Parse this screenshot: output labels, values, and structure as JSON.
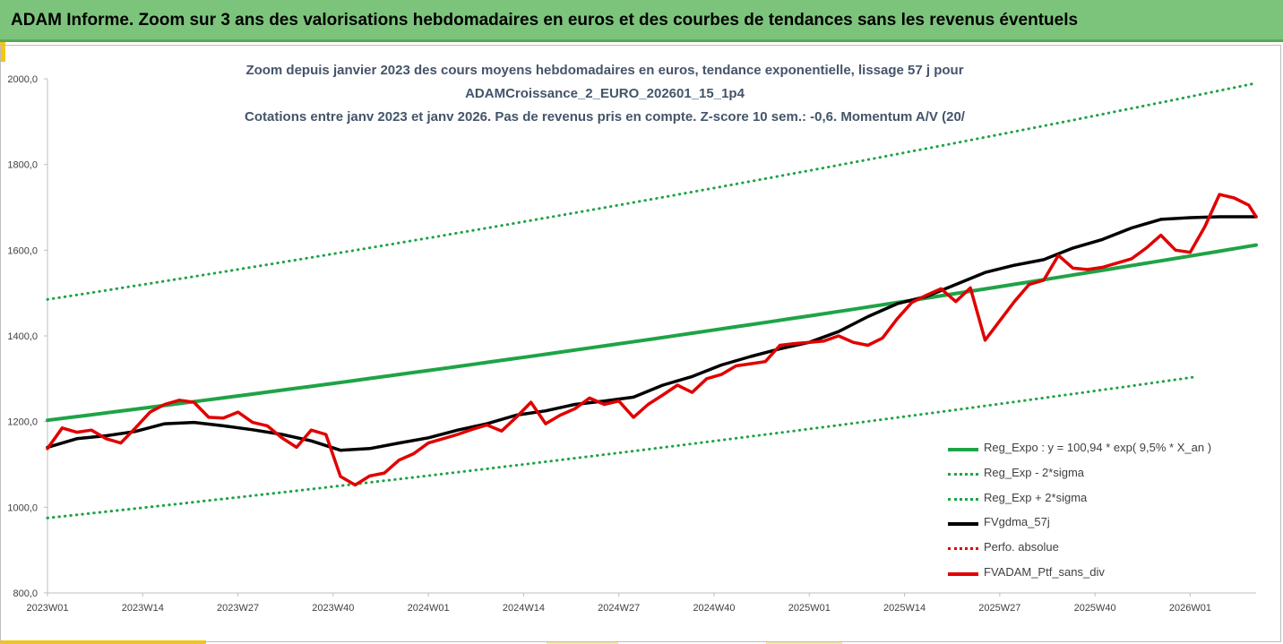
{
  "banner": {
    "title": "ADAM Informe. Zoom sur 3 ans des valorisations hebdomadaires en euros et des courbes de tendances sans les revenus éventuels"
  },
  "colors": {
    "banner_bg": "#7cc47c",
    "accent_yellow": "#f5c518",
    "title_text": "#44546a"
  },
  "chart_data": {
    "type": "line",
    "title_lines": [
      "Zoom depuis janvier 2023 des cours moyens hebdomadaires  en euros, tendance exponentielle, lissage 57 j pour",
      "ADAMCroissance_2_EURO_202601_15_1p4",
      "Cotations entre janv 2023 et janv 2026. Pas de revenus pris en compte. Z-score 10 sem.: -0,6. Momentum A/V (20/"
    ],
    "x_tick_labels": [
      "2023W01",
      "2023W14",
      "2023W27",
      "2023W40",
      "2024W01",
      "2024W14",
      "2024W27",
      "2024W40",
      "2025W01",
      "2025W14",
      "2025W27",
      "2025W40",
      "2026W01"
    ],
    "y_tick_labels": [
      "800,0",
      "1000,0",
      "1200,0",
      "1400,0",
      "1600,0",
      "1800,0",
      "2000,0"
    ],
    "ylim": [
      800,
      2000
    ],
    "x_range_weeks": [
      0,
      165
    ],
    "grid": false,
    "legend_position": "bottom-right",
    "series": [
      {
        "name": "Reg_Expo : y = 100,94 * exp( 9,5% *  X_an )",
        "color": "#1fa347",
        "style": "solid",
        "width": 4,
        "x": [
          0,
          165
        ],
        "values": [
          1203,
          1612
        ],
        "curve": "exp"
      },
      {
        "name": "Reg_Exp - 2*sigma",
        "color": "#1fa347",
        "style": "dotted",
        "width": 3,
        "x": [
          0,
          157
        ],
        "values": [
          975,
          1305
        ],
        "curve": "exp"
      },
      {
        "name": "Reg_Exp + 2*sigma",
        "color": "#1fa347",
        "style": "dotted",
        "width": 3,
        "x": [
          0,
          165
        ],
        "values": [
          1485,
          1990
        ],
        "curve": "exp"
      },
      {
        "name": "FVgdma_57j",
        "color": "#000000",
        "style": "solid",
        "width": 3.5,
        "x": [
          0,
          4,
          8,
          12,
          16,
          20,
          24,
          28,
          32,
          36,
          40,
          44,
          48,
          52,
          56,
          60,
          64,
          68,
          72,
          76,
          80,
          84,
          88,
          92,
          96,
          100,
          104,
          108,
          112,
          116,
          120,
          124,
          128,
          132,
          136,
          140,
          144,
          148,
          152,
          156,
          160,
          165
        ],
        "values": [
          1140,
          1160,
          1167,
          1177,
          1195,
          1198,
          1190,
          1181,
          1170,
          1155,
          1133,
          1137,
          1150,
          1162,
          1180,
          1195,
          1215,
          1225,
          1240,
          1248,
          1257,
          1285,
          1305,
          1332,
          1352,
          1370,
          1385,
          1410,
          1445,
          1475,
          1492,
          1520,
          1548,
          1565,
          1578,
          1605,
          1625,
          1652,
          1672,
          1676,
          1678,
          1678
        ]
      },
      {
        "name": "Perfo. absolue",
        "color": "#e00000",
        "style": "dotted",
        "width": 3,
        "x": [],
        "values": []
      },
      {
        "name": "FVADAM_Ptf_sans_div",
        "color": "#e00000",
        "style": "solid",
        "width": 3.5,
        "x": [
          0,
          2,
          4,
          6,
          8,
          10,
          12,
          14,
          16,
          18,
          20,
          22,
          24,
          26,
          28,
          30,
          32,
          34,
          36,
          38,
          40,
          42,
          44,
          46,
          48,
          50,
          52,
          54,
          56,
          58,
          60,
          62,
          64,
          66,
          68,
          70,
          72,
          74,
          76,
          78,
          80,
          82,
          84,
          86,
          88,
          90,
          92,
          94,
          96,
          98,
          100,
          102,
          104,
          106,
          108,
          110,
          112,
          114,
          116,
          118,
          120,
          122,
          124,
          126,
          128,
          130,
          132,
          134,
          136,
          138,
          140,
          142,
          144,
          146,
          148,
          150,
          152,
          154,
          156,
          158,
          160,
          162,
          164,
          165
        ],
        "values": [
          1137,
          1185,
          1175,
          1180,
          1160,
          1150,
          1185,
          1222,
          1240,
          1250,
          1245,
          1210,
          1208,
          1222,
          1198,
          1190,
          1162,
          1140,
          1180,
          1170,
          1072,
          1052,
          1073,
          1080,
          1110,
          1125,
          1150,
          1160,
          1170,
          1182,
          1192,
          1178,
          1210,
          1245,
          1195,
          1215,
          1230,
          1255,
          1240,
          1248,
          1210,
          1240,
          1262,
          1285,
          1268,
          1300,
          1310,
          1330,
          1335,
          1340,
          1378,
          1382,
          1385,
          1388,
          1400,
          1385,
          1378,
          1395,
          1440,
          1478,
          1495,
          1510,
          1480,
          1512,
          1390,
          1435,
          1480,
          1520,
          1530,
          1588,
          1558,
          1555,
          1560,
          1570,
          1580,
          1605,
          1635,
          1600,
          1595,
          1655,
          1730,
          1722,
          1705,
          1678
        ]
      }
    ]
  }
}
